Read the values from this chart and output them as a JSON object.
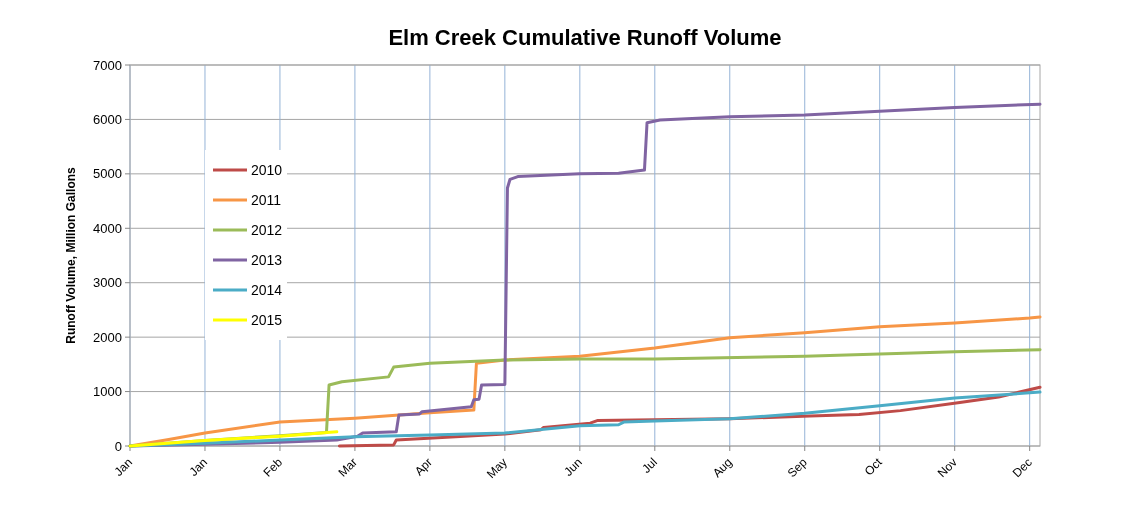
{
  "chart_data": {
    "type": "line",
    "title": "Elm Creek Cumulative Runoff Volume",
    "ylabel": "Runoff Volume, Million Gallons",
    "xlim": [
      "--01-01",
      "--12-19"
    ],
    "ylim": [
      0,
      7000
    ],
    "xticks": [
      {
        "value": "--01-01",
        "label": "Jan"
      },
      {
        "value": "--01-30",
        "label": "Jan"
      },
      {
        "value": "--02-28",
        "label": "Feb"
      },
      {
        "value": "--03-29",
        "label": "Mar"
      },
      {
        "value": "--04-27",
        "label": "Apr"
      },
      {
        "value": "--05-26",
        "label": "May"
      },
      {
        "value": "--06-24",
        "label": "Jun"
      },
      {
        "value": "--07-23",
        "label": "Jul"
      },
      {
        "value": "--08-21",
        "label": "Aug"
      },
      {
        "value": "--09-19",
        "label": "Sep"
      },
      {
        "value": "--10-18",
        "label": "Oct"
      },
      {
        "value": "--11-16",
        "label": "Nov"
      },
      {
        "value": "--12-15",
        "label": "Dec"
      }
    ],
    "yticks": [
      0,
      1000,
      2000,
      3000,
      4000,
      5000,
      6000,
      7000
    ],
    "grid": true,
    "legend": "left",
    "marker": "none",
    "line_style": "solid",
    "series": [
      {
        "name": "2010",
        "color": "#be4b48",
        "x": [
          "--03-23",
          "--04-13",
          "--04-14",
          "--05-07",
          "--05-26",
          "--06-09",
          "--06-10",
          "--06-28",
          "--07-01",
          "--07-23",
          "--08-21",
          "--09-21",
          "--10-10",
          "--10-26",
          "--11-18",
          "--12-03",
          "--12-19"
        ],
        "values": [
          0,
          20,
          110,
          170,
          220,
          300,
          340,
          420,
          470,
          480,
          500,
          550,
          580,
          650,
          800,
          900,
          1080
        ]
      },
      {
        "name": "2011",
        "color": "#f79646",
        "x": [
          "--01-01",
          "--01-16",
          "--01-30",
          "--02-28",
          "--03-29",
          "--04-27",
          "--05-14",
          "--05-15",
          "--05-26",
          "--06-24",
          "--07-23",
          "--08-21",
          "--09-19",
          "--10-18",
          "--11-16",
          "--12-15",
          "--12-19"
        ],
        "values": [
          0,
          120,
          240,
          440,
          510,
          610,
          660,
          1520,
          1580,
          1650,
          1800,
          1990,
          2080,
          2190,
          2260,
          2350,
          2370
        ]
      },
      {
        "name": "2012",
        "color": "#9bbb59",
        "x": [
          "--01-01",
          "--01-30",
          "--02-28",
          "--03-18",
          "--03-19",
          "--03-24",
          "--04-11",
          "--04-13",
          "--04-27",
          "--05-26",
          "--06-24",
          "--07-23",
          "--09-19",
          "--11-16",
          "--12-19"
        ],
        "values": [
          0,
          100,
          190,
          250,
          1120,
          1180,
          1270,
          1450,
          1520,
          1580,
          1600,
          1600,
          1650,
          1730,
          1770
        ]
      },
      {
        "name": "2013",
        "color": "#8064a2",
        "x": [
          "--01-01",
          "--01-30",
          "--02-28",
          "--03-22",
          "--03-30",
          "--04-01",
          "--04-14",
          "--04-15",
          "--04-23",
          "--04-24",
          "--05-13",
          "--05-14",
          "--05-16",
          "--05-17",
          "--05-26",
          "--05-27",
          "--05-28",
          "--05-31",
          "--06-24",
          "--07-09",
          "--07-19",
          "--07-20",
          "--07-25",
          "--08-21",
          "--09-19",
          "--10-18",
          "--11-16",
          "--12-19"
        ],
        "values": [
          0,
          30,
          70,
          110,
          180,
          240,
          260,
          570,
          590,
          630,
          720,
          850,
          860,
          1120,
          1130,
          4740,
          4900,
          4950,
          5000,
          5010,
          5070,
          5940,
          5990,
          6050,
          6080,
          6150,
          6220,
          6280
        ]
      },
      {
        "name": "2014",
        "color": "#4bacc6",
        "x": [
          "--01-01",
          "--01-30",
          "--02-28",
          "--03-29",
          "--04-27",
          "--05-26",
          "--06-24",
          "--07-09",
          "--07-11",
          "--07-23",
          "--08-21",
          "--09-19",
          "--10-18",
          "--11-16",
          "--12-19"
        ],
        "values": [
          0,
          50,
          110,
          170,
          200,
          240,
          370,
          390,
          440,
          460,
          500,
          600,
          740,
          880,
          990
        ]
      },
      {
        "name": "2015",
        "color": "#ffff00",
        "x": [
          "--01-01",
          "--01-30",
          "--02-28",
          "--03-22"
        ],
        "values": [
          0,
          100,
          180,
          260
        ]
      }
    ]
  }
}
